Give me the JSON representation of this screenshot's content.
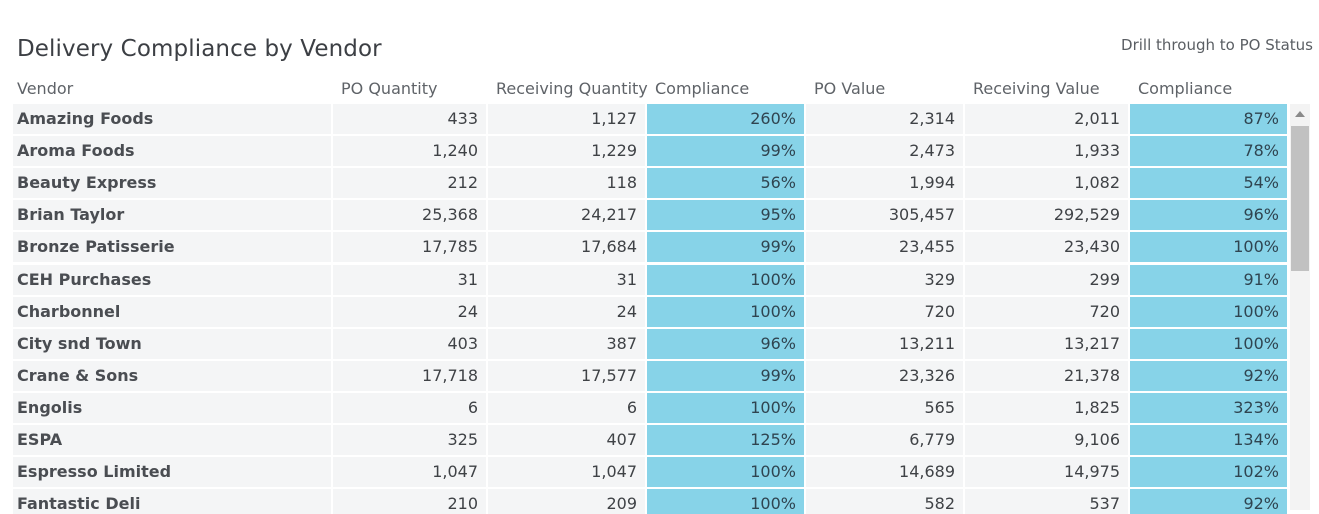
{
  "title": "Delivery Compliance by Vendor",
  "drill_link": "Drill through to PO Status",
  "colors": {
    "compliance_bg": "#87d3e8",
    "cell_bg": "#f4f5f6"
  },
  "columns": [
    "Vendor",
    "PO Quantity",
    "Receiving Quantity",
    "Compliance",
    "PO Value",
    "Receiving Value",
    "Compliance"
  ],
  "rows": [
    [
      "Amazing Foods",
      "433",
      "1,127",
      "260%",
      "2,314",
      "2,011",
      "87%"
    ],
    [
      "Aroma Foods",
      "1,240",
      "1,229",
      "99%",
      "2,473",
      "1,933",
      "78%"
    ],
    [
      "Beauty Express",
      "212",
      "118",
      "56%",
      "1,994",
      "1,082",
      "54%"
    ],
    [
      "Brian Taylor",
      "25,368",
      "24,217",
      "95%",
      "305,457",
      "292,529",
      "96%"
    ],
    [
      "Bronze Patisserie",
      "17,785",
      "17,684",
      "99%",
      "23,455",
      "23,430",
      "100%"
    ],
    [
      "CEH Purchases",
      "31",
      "31",
      "100%",
      "329",
      "299",
      "91%"
    ],
    [
      "Charbonnel",
      "24",
      "24",
      "100%",
      "720",
      "720",
      "100%"
    ],
    [
      "City snd Town",
      "403",
      "387",
      "96%",
      "13,211",
      "13,217",
      "100%"
    ],
    [
      "Crane & Sons",
      "17,718",
      "17,577",
      "99%",
      "23,326",
      "21,378",
      "92%"
    ],
    [
      "Engolis",
      "6",
      "6",
      "100%",
      "565",
      "1,825",
      "323%"
    ],
    [
      "ESPA",
      "325",
      "407",
      "125%",
      "6,779",
      "9,106",
      "134%"
    ],
    [
      "Espresso Limited",
      "1,047",
      "1,047",
      "100%",
      "14,689",
      "14,975",
      "102%"
    ],
    [
      "Fantastic Deli",
      "210",
      "209",
      "100%",
      "582",
      "537",
      "92%"
    ]
  ]
}
